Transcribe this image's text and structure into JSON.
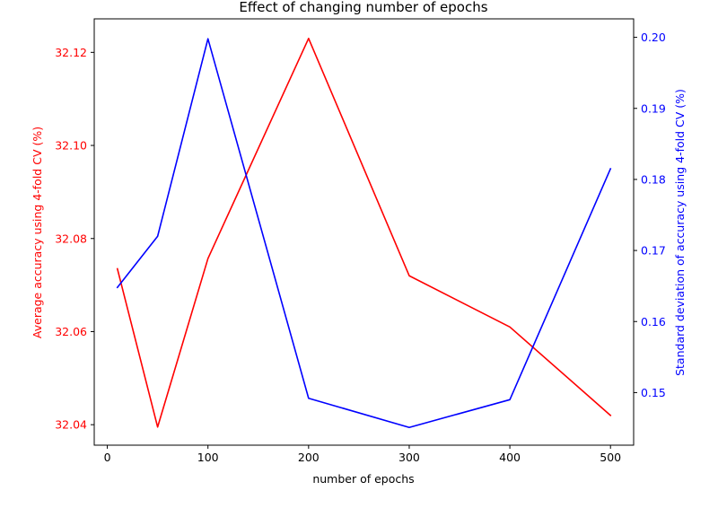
{
  "chart_data": {
    "type": "line",
    "title": "Effect of changing number of epochs",
    "xlabel": "number of epochs",
    "x": [
      10,
      50,
      100,
      200,
      300,
      400,
      500
    ],
    "xlim": [
      -13,
      523
    ],
    "xticks": [
      0,
      100,
      200,
      300,
      400,
      500
    ],
    "xtick_labels": [
      "0",
      "100",
      "200",
      "300",
      "400",
      "500"
    ],
    "grid": false,
    "y_left": {
      "label": "Average accuracy using 4-fold CV (%)",
      "color": "#ff0000",
      "lim": [
        32.0356,
        32.1272
      ],
      "ticks": [
        32.04,
        32.06,
        32.08,
        32.1,
        32.12
      ],
      "tick_labels": [
        "32.04",
        "32.06",
        "32.08",
        "32.10",
        "32.12"
      ]
    },
    "y_right": {
      "label": "Standard deviation of accuracy using 4-fold CV (%)",
      "color": "#0000ff",
      "lim": [
        0.1426,
        0.2026
      ],
      "ticks": [
        0.15,
        0.16,
        0.17,
        0.18,
        0.19,
        0.2
      ],
      "tick_labels": [
        "0.15",
        "0.16",
        "0.17",
        "0.18",
        "0.19",
        "0.20"
      ]
    },
    "series": [
      {
        "axis": "left",
        "color": "#ff0000",
        "values": [
          32.0735,
          32.0395,
          32.0757,
          32.123,
          32.072,
          32.061,
          32.042
        ]
      },
      {
        "axis": "right",
        "color": "#0000ff",
        "values": [
          0.1648,
          0.172,
          0.1998,
          0.1492,
          0.1451,
          0.149,
          0.1815
        ]
      }
    ]
  }
}
